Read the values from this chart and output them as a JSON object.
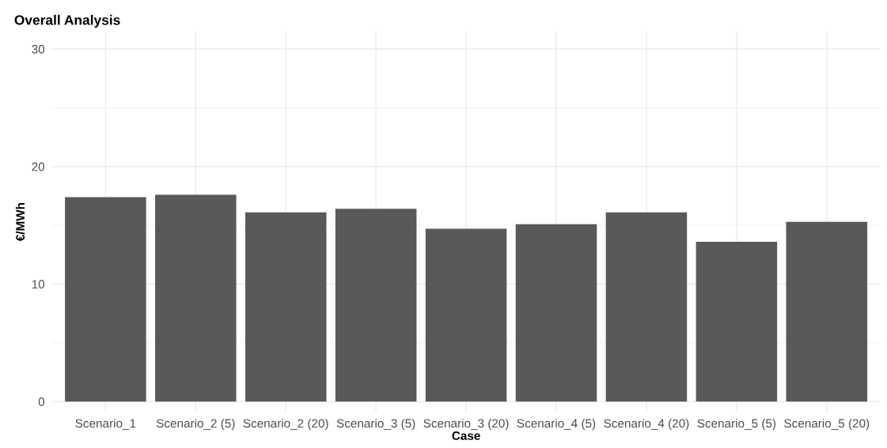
{
  "chart_data": {
    "type": "bar",
    "title": "Overall Analysis",
    "xlabel": "Case",
    "ylabel": "€/MWh",
    "categories": [
      "Scenario_1",
      "Scenario_2 (5)",
      "Scenario_2 (20)",
      "Scenario_3 (5)",
      "Scenario_3 (20)",
      "Scenario_4 (5)",
      "Scenario_4 (20)",
      "Scenario_5 (5)",
      "Scenario_5 (20)"
    ],
    "values": [
      17.4,
      17.6,
      16.1,
      16.4,
      14.7,
      15.1,
      16.1,
      13.6,
      15.3
    ],
    "color": "#595959",
    "ylim": [
      -0.9,
      31.5
    ],
    "yticks": [
      0,
      10,
      20,
      30
    ],
    "grid": true
  }
}
